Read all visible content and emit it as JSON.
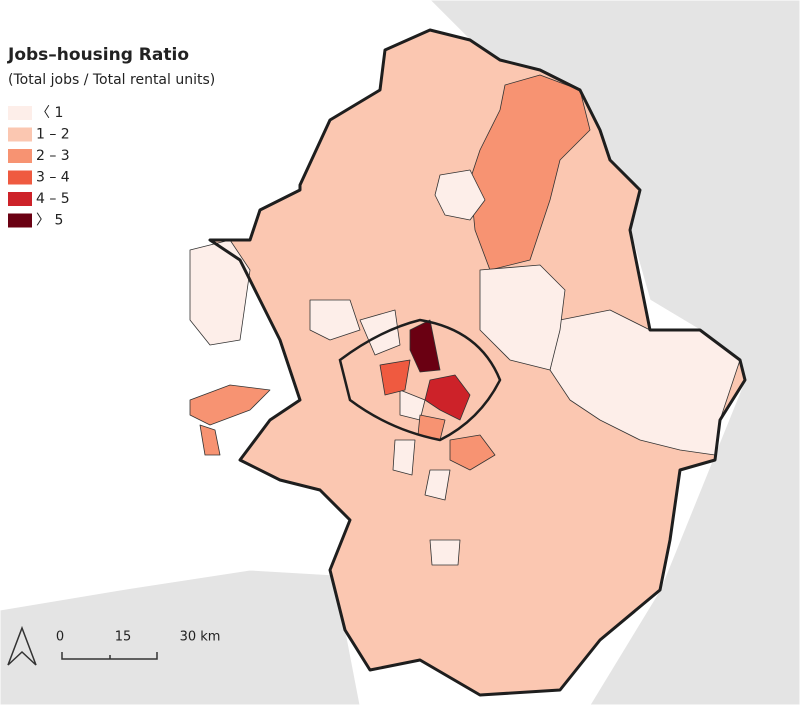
{
  "legend": {
    "title": "Jobs–housing Ratio",
    "subtitle": "(Total jobs / Total rental units)",
    "items": [
      {
        "label": "〈 1",
        "color": "#fdeee9"
      },
      {
        "label": "1 – 2",
        "color": "#fbc7b1"
      },
      {
        "label": "2 – 3",
        "color": "#f79372"
      },
      {
        "label": "3 – 4",
        "color": "#ef5a40"
      },
      {
        "label": "4 – 5",
        "color": "#cd2229"
      },
      {
        "label": "〉 5",
        "color": "#6a0012"
      }
    ]
  },
  "scale_bar": {
    "labels": [
      "0",
      "15",
      "30 km"
    ]
  }
}
